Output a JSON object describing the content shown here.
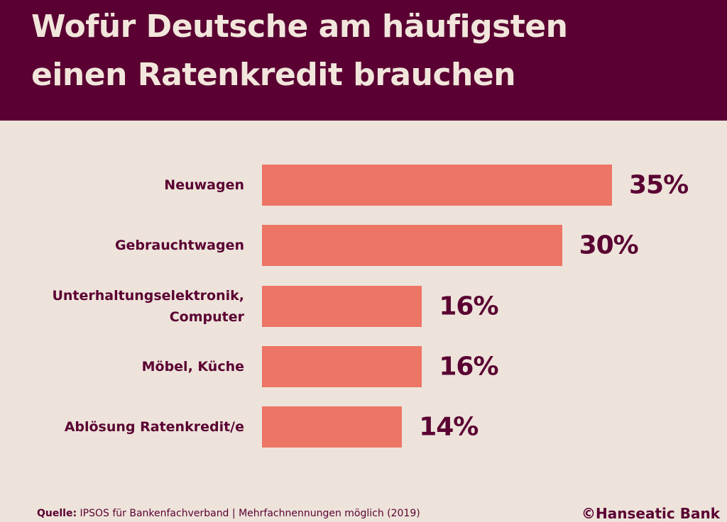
{
  "chart_data": {
    "type": "bar",
    "title": "Wofür Deutsche am häufigsten\neinen Ratenkredit brauchen",
    "categories": [
      "Neuwagen",
      "Gebrauchtwagen",
      "Unterhaltungselektronik,\nComputer",
      "Möbel, Küche",
      "Ablösung Ratenkredit/e"
    ],
    "values": [
      35,
      30,
      16,
      16,
      14
    ],
    "value_labels": [
      "35%",
      "30%",
      "16%",
      "16%",
      "14%"
    ],
    "color": "#ec7566",
    "source_label": "Quelle:",
    "source": "IPSOS für Bankenfachverband | Mehrfachnennungen möglich (2019)",
    "copyright": "©Hanseatic Bank"
  }
}
